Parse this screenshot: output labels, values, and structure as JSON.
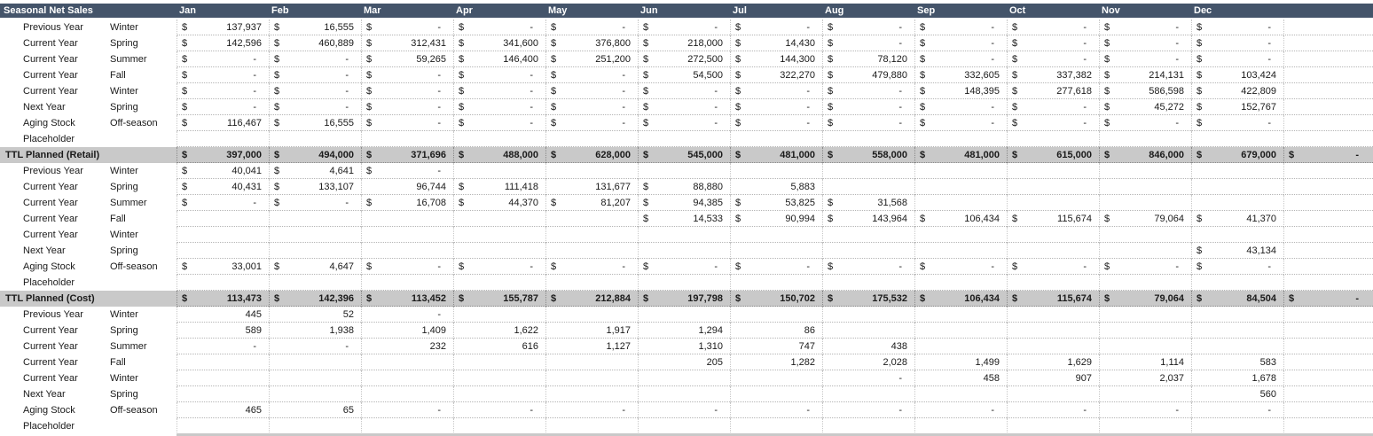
{
  "header": {
    "title": "Seasonal Net Sales",
    "months": [
      "Jan",
      "Feb",
      "Mar",
      "Apr",
      "May",
      "Jun",
      "Jul",
      "Aug",
      "Sep",
      "Oct",
      "Nov",
      "Dec"
    ]
  },
  "section1": {
    "rows": [
      {
        "year": "Previous Year",
        "season": "Winter",
        "dollar": [
          1,
          1,
          1,
          1,
          1,
          1,
          1,
          1,
          1,
          1,
          1,
          1
        ],
        "values": [
          "137,937",
          "16,555",
          "-",
          "-",
          "-",
          "-",
          "-",
          "-",
          "-",
          "-",
          "-",
          "-"
        ]
      },
      {
        "year": "Current Year",
        "season": "Spring",
        "dollar": [
          1,
          1,
          1,
          1,
          1,
          1,
          1,
          1,
          1,
          1,
          1,
          1
        ],
        "values": [
          "142,596",
          "460,889",
          "312,431",
          "341,600",
          "376,800",
          "218,000",
          "14,430",
          "-",
          "-",
          "-",
          "-",
          "-"
        ]
      },
      {
        "year": "Current Year",
        "season": "Summer",
        "dollar": [
          1,
          1,
          1,
          1,
          1,
          1,
          1,
          1,
          1,
          1,
          1,
          1
        ],
        "values": [
          "-",
          "-",
          "59,265",
          "146,400",
          "251,200",
          "272,500",
          "144,300",
          "78,120",
          "-",
          "-",
          "-",
          "-"
        ]
      },
      {
        "year": "Current Year",
        "season": "Fall",
        "dollar": [
          1,
          1,
          1,
          1,
          1,
          1,
          1,
          1,
          1,
          1,
          1,
          1
        ],
        "values": [
          "-",
          "-",
          "-",
          "-",
          "-",
          "54,500",
          "322,270",
          "479,880",
          "332,605",
          "337,382",
          "214,131",
          "103,424"
        ]
      },
      {
        "year": "Current Year",
        "season": "Winter",
        "dollar": [
          1,
          1,
          1,
          1,
          1,
          1,
          1,
          1,
          1,
          1,
          1,
          1
        ],
        "values": [
          "-",
          "-",
          "-",
          "-",
          "-",
          "-",
          "-",
          "-",
          "148,395",
          "277,618",
          "586,598",
          "422,809"
        ]
      },
      {
        "year": "Next Year",
        "season": "Spring",
        "dollar": [
          1,
          1,
          1,
          1,
          1,
          1,
          1,
          1,
          1,
          1,
          1,
          1
        ],
        "values": [
          "-",
          "-",
          "-",
          "-",
          "-",
          "-",
          "-",
          "-",
          "-",
          "-",
          "45,272",
          "152,767"
        ]
      },
      {
        "year": "Aging Stock",
        "season": "Off-season",
        "dollar": [
          1,
          1,
          1,
          1,
          1,
          1,
          1,
          1,
          1,
          1,
          1,
          1
        ],
        "values": [
          "116,467",
          "16,555",
          "-",
          "-",
          "-",
          "-",
          "-",
          "-",
          "-",
          "-",
          "-",
          "-"
        ]
      },
      {
        "year": "Placeholder",
        "season": "",
        "dollar": [
          0,
          0,
          0,
          0,
          0,
          0,
          0,
          0,
          0,
          0,
          0,
          0
        ],
        "values": [
          "",
          "",
          "",
          "",
          "",
          "",
          "",
          "",
          "",
          "",
          "",
          ""
        ]
      }
    ],
    "total": {
      "label": "TTL Planned (Retail)",
      "values": [
        "397,000",
        "494,000",
        "371,696",
        "488,000",
        "628,000",
        "545,000",
        "481,000",
        "558,000",
        "481,000",
        "615,000",
        "846,000",
        "679,000"
      ],
      "extra": "-"
    }
  },
  "section2": {
    "rows": [
      {
        "year": "Previous Year",
        "season": "Winter",
        "dollar": [
          1,
          1,
          1,
          0,
          0,
          0,
          0,
          0,
          0,
          0,
          0,
          0
        ],
        "values": [
          "40,041",
          "4,641",
          "-",
          "",
          "",
          "",
          "",
          "",
          "",
          "",
          "",
          ""
        ]
      },
      {
        "year": "Current Year",
        "season": "Spring",
        "dollar": [
          1,
          1,
          0,
          1,
          0,
          1,
          0,
          0,
          0,
          0,
          0,
          0
        ],
        "values": [
          "40,431",
          "133,107",
          "96,744",
          "111,418",
          "131,677",
          "88,880",
          "5,883",
          "",
          "",
          "",
          "",
          ""
        ]
      },
      {
        "year": "Current Year",
        "season": "Summer",
        "dollar": [
          1,
          1,
          1,
          1,
          1,
          1,
          1,
          1,
          0,
          0,
          0,
          0
        ],
        "values": [
          "-",
          "-",
          "16,708",
          "44,370",
          "81,207",
          "94,385",
          "53,825",
          "31,568",
          "",
          "",
          "",
          ""
        ]
      },
      {
        "year": "Current Year",
        "season": "Fall",
        "dollar": [
          0,
          0,
          0,
          0,
          0,
          1,
          1,
          1,
          1,
          1,
          1,
          1
        ],
        "values": [
          "",
          "",
          "",
          "",
          "",
          "14,533",
          "90,994",
          "143,964",
          "106,434",
          "115,674",
          "79,064",
          "41,370"
        ]
      },
      {
        "year": "Current Year",
        "season": "Winter",
        "dollar": [
          0,
          0,
          0,
          0,
          0,
          0,
          0,
          0,
          0,
          0,
          0,
          0
        ],
        "values": [
          "",
          "",
          "",
          "",
          "",
          "",
          "",
          "",
          "",
          "",
          "",
          ""
        ]
      },
      {
        "year": "Next Year",
        "season": "Spring",
        "dollar": [
          0,
          0,
          0,
          0,
          0,
          0,
          0,
          0,
          0,
          0,
          0,
          1
        ],
        "values": [
          "",
          "",
          "",
          "",
          "",
          "",
          "",
          "",
          "",
          "",
          "",
          "43,134"
        ]
      },
      {
        "year": "Aging Stock",
        "season": "Off-season",
        "dollar": [
          1,
          1,
          1,
          1,
          1,
          1,
          1,
          1,
          1,
          1,
          1,
          1
        ],
        "values": [
          "33,001",
          "4,647",
          "-",
          "-",
          "-",
          "-",
          "-",
          "-",
          "-",
          "-",
          "-",
          "-"
        ]
      },
      {
        "year": "Placeholder",
        "season": "",
        "dollar": [
          0,
          0,
          0,
          0,
          0,
          0,
          0,
          0,
          0,
          0,
          0,
          0
        ],
        "values": [
          "",
          "",
          "",
          "",
          "",
          "",
          "",
          "",
          "",
          "",
          "",
          ""
        ]
      }
    ],
    "total": {
      "label": "TTL Planned (Cost)",
      "values": [
        "113,473",
        "142,396",
        "113,452",
        "155,787",
        "212,884",
        "197,798",
        "150,702",
        "175,532",
        "106,434",
        "115,674",
        "79,064",
        "84,504"
      ],
      "extra": "-"
    }
  },
  "section3": {
    "rows": [
      {
        "year": "Previous Year",
        "season": "Winter",
        "values": [
          "445",
          "52",
          "-",
          "",
          "",
          "",
          "",
          "",
          "",
          "",
          "",
          ""
        ]
      },
      {
        "year": "Current Year",
        "season": "Spring",
        "values": [
          "589",
          "1,938",
          "1,409",
          "1,622",
          "1,917",
          "1,294",
          "86",
          "",
          "",
          "",
          "",
          ""
        ]
      },
      {
        "year": "Current Year",
        "season": "Summer",
        "values": [
          "-",
          "-",
          "232",
          "616",
          "1,127",
          "1,310",
          "747",
          "438",
          "",
          "",
          "",
          ""
        ]
      },
      {
        "year": "Current Year",
        "season": "Fall",
        "values": [
          "",
          "",
          "",
          "",
          "",
          "205",
          "1,282",
          "2,028",
          "1,499",
          "1,629",
          "1,114",
          "583"
        ]
      },
      {
        "year": "Current Year",
        "season": "Winter",
        "values": [
          "",
          "",
          "",
          "",
          "",
          "",
          "",
          "-",
          "458",
          "907",
          "2,037",
          "1,678"
        ]
      },
      {
        "year": "Next Year",
        "season": "Spring",
        "values": [
          "",
          "",
          "",
          "",
          "",
          "",
          "",
          "",
          "",
          "",
          "",
          "560"
        ]
      },
      {
        "year": "Aging Stock",
        "season": "Off-season",
        "values": [
          "465",
          "65",
          "-",
          "-",
          "-",
          "-",
          "-",
          "-",
          "-",
          "-",
          "-",
          "-"
        ]
      },
      {
        "year": "Placeholder",
        "season": "",
        "values": [
          "",
          "",
          "",
          "",
          "",
          "",
          "",
          "",
          "",
          "",
          "",
          ""
        ]
      }
    ]
  },
  "currency_symbol": "$",
  "colors": {
    "header_bg": "#44546a",
    "total_bg": "#c9c9c9"
  }
}
